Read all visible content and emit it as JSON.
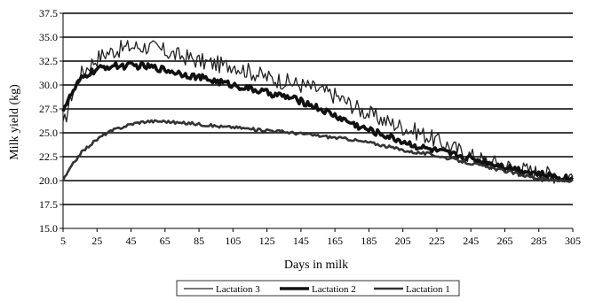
{
  "chart_data": {
    "type": "line",
    "title": "",
    "xlabel": "Days in milk",
    "ylabel": "Milk yield (kg)",
    "xlim": [
      5,
      305
    ],
    "ylim": [
      15.0,
      37.5
    ],
    "xticks": [
      "5",
      "25",
      "45",
      "65",
      "85",
      "105",
      "125",
      "145",
      "165",
      "185",
      "205",
      "225",
      "245",
      "265",
      "285",
      "305"
    ],
    "yticks": [
      "15.0",
      "17.5",
      "20.0",
      "22.5",
      "25.0",
      "27.5",
      "30.0",
      "32.5",
      "35.0",
      "37.5"
    ],
    "grid": "horizontal",
    "legend_position": "bottom",
    "series": [
      {
        "name": "Lactation 3",
        "color": "#222222",
        "line_weight": "thin",
        "noise": 0.9,
        "x": [
          5,
          10,
          15,
          20,
          25,
          30,
          35,
          40,
          45,
          50,
          55,
          60,
          65,
          70,
          75,
          80,
          85,
          90,
          95,
          100,
          105,
          110,
          115,
          120,
          125,
          130,
          135,
          140,
          145,
          150,
          155,
          160,
          165,
          170,
          175,
          180,
          185,
          190,
          195,
          200,
          205,
          210,
          215,
          220,
          225,
          230,
          235,
          240,
          245,
          250,
          255,
          260,
          265,
          270,
          275,
          280,
          285,
          290,
          295,
          300,
          305
        ],
        "values": [
          25.5,
          29.0,
          31.0,
          32.0,
          32.8,
          33.3,
          33.6,
          33.8,
          34.0,
          34.0,
          34.0,
          33.8,
          33.5,
          33.2,
          33.0,
          32.8,
          32.5,
          32.3,
          32.2,
          32.0,
          32.2,
          31.7,
          31.4,
          31.1,
          30.8,
          30.6,
          30.4,
          30.2,
          30.0,
          29.8,
          29.5,
          29.2,
          28.9,
          28.4,
          27.9,
          27.4,
          27.0,
          26.6,
          26.2,
          25.9,
          25.6,
          25.3,
          25.0,
          24.6,
          24.2,
          23.8,
          23.4,
          23.0,
          22.6,
          22.3,
          22.0,
          21.8,
          21.6,
          21.4,
          21.2,
          21.0,
          20.8,
          20.7,
          20.6,
          20.5,
          20.5
        ]
      },
      {
        "name": "Lactation 2",
        "color": "#111111",
        "line_weight": "thick",
        "noise": 0.35,
        "x": [
          5,
          10,
          15,
          20,
          25,
          30,
          35,
          40,
          45,
          50,
          55,
          60,
          65,
          70,
          75,
          80,
          85,
          90,
          95,
          100,
          105,
          110,
          115,
          120,
          125,
          130,
          135,
          140,
          145,
          150,
          155,
          160,
          165,
          170,
          175,
          180,
          185,
          190,
          195,
          200,
          205,
          210,
          215,
          220,
          225,
          230,
          235,
          240,
          245,
          250,
          255,
          260,
          265,
          270,
          275,
          280,
          285,
          290,
          295,
          300,
          305
        ],
        "values": [
          27.5,
          29.0,
          30.5,
          31.2,
          31.6,
          31.9,
          32.0,
          32.0,
          32.0,
          32.0,
          31.9,
          31.8,
          31.6,
          31.4,
          31.2,
          31.0,
          30.8,
          30.6,
          30.4,
          30.2,
          30.0,
          29.8,
          29.6,
          29.4,
          29.2,
          29.0,
          28.8,
          28.6,
          28.3,
          28.0,
          27.6,
          27.2,
          26.8,
          26.4,
          26.0,
          25.6,
          25.3,
          25.0,
          24.7,
          24.4,
          24.1,
          23.8,
          23.5,
          23.3,
          23.1,
          22.9,
          22.7,
          22.5,
          22.3,
          22.1,
          21.9,
          21.7,
          21.5,
          21.3,
          21.1,
          20.9,
          20.7,
          20.5,
          20.4,
          20.3,
          20.2
        ]
      },
      {
        "name": "Lactation 1",
        "color": "#333333",
        "line_weight": "medium",
        "noise": 0.15,
        "x": [
          5,
          10,
          15,
          20,
          25,
          30,
          35,
          40,
          45,
          50,
          55,
          60,
          65,
          70,
          75,
          80,
          85,
          90,
          95,
          100,
          105,
          110,
          115,
          120,
          125,
          130,
          135,
          140,
          145,
          150,
          155,
          160,
          165,
          170,
          175,
          180,
          185,
          190,
          195,
          200,
          205,
          210,
          215,
          220,
          225,
          230,
          235,
          240,
          245,
          250,
          255,
          260,
          265,
          270,
          275,
          280,
          285,
          290,
          295,
          300,
          305
        ],
        "values": [
          20.0,
          21.5,
          22.8,
          23.6,
          24.3,
          24.9,
          25.3,
          25.6,
          25.9,
          26.1,
          26.2,
          26.2,
          26.2,
          26.1,
          26.0,
          26.0,
          25.9,
          25.8,
          25.7,
          25.6,
          25.6,
          25.5,
          25.4,
          25.3,
          25.3,
          25.2,
          25.1,
          25.0,
          24.9,
          24.8,
          24.7,
          24.6,
          24.5,
          24.4,
          24.3,
          24.1,
          24.0,
          23.8,
          23.6,
          23.4,
          23.2,
          23.0,
          22.9,
          22.8,
          22.6,
          22.4,
          22.2,
          22.0,
          21.8,
          21.6,
          21.4,
          21.2,
          21.0,
          20.8,
          20.6,
          20.4,
          20.2,
          20.1,
          20.0,
          20.0,
          20.0
        ]
      }
    ]
  }
}
